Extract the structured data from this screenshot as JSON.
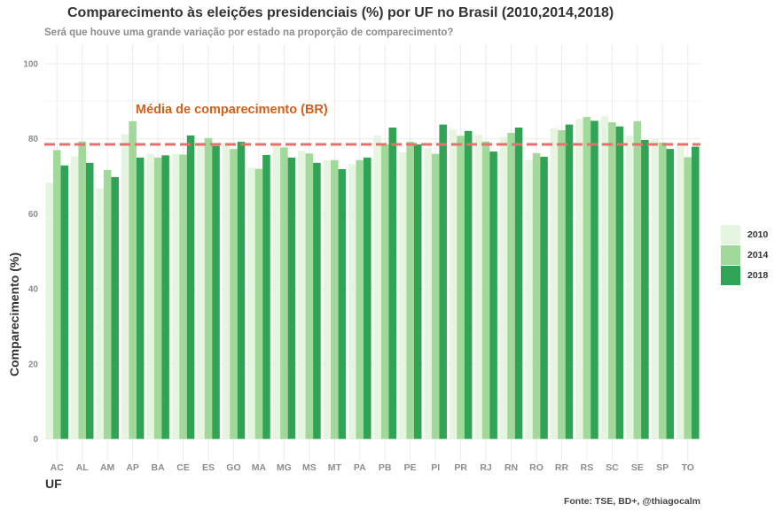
{
  "title": "Comparecimento às eleições presidenciais (%) por UF no Brasil (2010,2014,2018)",
  "subtitle": "Será que houve uma grande variação por estado na proporção de comparecimento?",
  "caption": "Fonte: TSE, BD+, @thiagocalm",
  "colors": {
    "2010": "#e5f5e0",
    "2014": "#a1d99b",
    "2018": "#31a354",
    "avg_line": "#e8706a",
    "annotation": "#d0611c",
    "grid": "#ebebeb",
    "axis_text": "#8c8c8c"
  },
  "chart_data": {
    "type": "bar",
    "xlabel": "UF",
    "ylabel": "Comparecimento (%)",
    "ylim": [
      0,
      100
    ],
    "yticks": [
      0,
      20,
      40,
      60,
      80,
      100
    ],
    "grid": true,
    "legend_position": "right",
    "categories": [
      "AC",
      "AL",
      "AM",
      "AP",
      "BA",
      "CE",
      "ES",
      "GO",
      "MA",
      "MG",
      "MS",
      "MT",
      "PA",
      "PB",
      "PE",
      "PI",
      "PR",
      "RJ",
      "RN",
      "RO",
      "RR",
      "RS",
      "SC",
      "SE",
      "SP",
      "TO"
    ],
    "series": [
      {
        "name": "2010",
        "values": [
          68.3,
          75.3,
          66.8,
          81.2,
          76.0,
          76.0,
          79.0,
          79.0,
          72.3,
          78.3,
          76.8,
          74.3,
          73.2,
          80.8,
          76.4,
          77.5,
          82.5,
          81.0,
          80.5,
          74.4,
          82.8,
          85.3,
          86.0,
          80.8,
          79.8,
          78.0
        ]
      },
      {
        "name": "2014",
        "values": [
          77.0,
          79.3,
          71.7,
          84.7,
          75.0,
          75.8,
          80.2,
          77.3,
          72.0,
          77.7,
          76.1,
          74.3,
          74.3,
          78.5,
          79.2,
          76.0,
          80.8,
          79.3,
          81.6,
          76.2,
          82.3,
          85.8,
          84.4,
          84.7,
          79.0,
          75.1
        ]
      },
      {
        "name": "2018",
        "values": [
          72.9,
          73.6,
          69.8,
          75.0,
          75.6,
          80.9,
          78.1,
          79.2,
          75.7,
          75.0,
          73.6,
          71.9,
          75.0,
          83.0,
          78.5,
          83.8,
          82.1,
          76.6,
          83.0,
          75.2,
          83.8,
          84.8,
          83.3,
          79.7,
          77.3,
          77.9
        ]
      }
    ],
    "reference_line": {
      "value": 78.5,
      "label": "Média de comparecimento (BR)",
      "style": "dashed"
    }
  }
}
